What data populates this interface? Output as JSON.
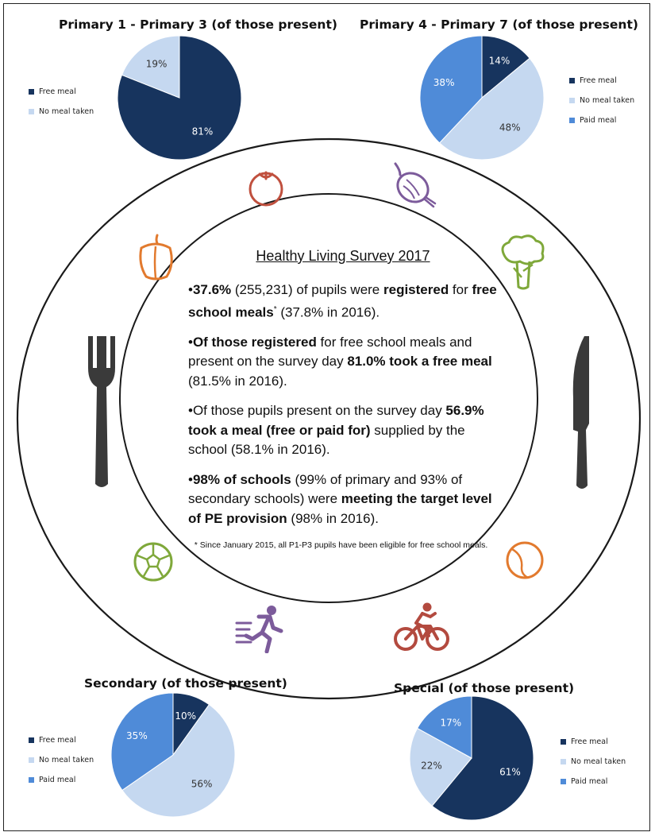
{
  "colors": {
    "free": "#17345e",
    "none": "#c5d8f0",
    "paid": "#4f8bd8",
    "orange": "#e27a2e",
    "green": "#7fa83a",
    "purple": "#7c5b9b",
    "red": "#b34a3f",
    "cutlery": "#3a3a3a"
  },
  "chart_data": [
    {
      "type": "pie",
      "title": "Primary 1 - Primary 3 (of those present)",
      "categories": [
        "Free meal",
        "No meal taken"
      ],
      "values": [
        81,
        19
      ],
      "labels": [
        "81%",
        "19%"
      ]
    },
    {
      "type": "pie",
      "title": "Primary 4 - Primary 7 (of those present)",
      "categories": [
        "Free meal",
        "No meal taken",
        "Paid meal"
      ],
      "values": [
        14,
        48,
        38
      ],
      "labels": [
        "14%",
        "48%",
        "38%"
      ]
    },
    {
      "type": "pie",
      "title": "Secondary (of those present)",
      "categories": [
        "Free meal",
        "No meal taken",
        "Paid meal"
      ],
      "values": [
        10,
        56,
        35
      ],
      "labels": [
        "10%",
        "56%",
        "35%"
      ]
    },
    {
      "type": "pie",
      "title": "Special (of those present)",
      "categories": [
        "Free meal",
        "No meal taken",
        "Paid meal"
      ],
      "values": [
        61,
        22,
        17
      ],
      "labels": [
        "61%",
        "22%",
        "17%"
      ]
    }
  ],
  "infographic": {
    "title": "Healthy Living Survey 2017",
    "bullets": [
      [
        {
          "t": "37.6%",
          "b": true
        },
        {
          "t": " (255,231) of pupils were "
        },
        {
          "t": "registered",
          "b": true
        },
        {
          "t": " for "
        },
        {
          "t": "free school meals",
          "b": true
        },
        {
          "t": "*",
          "sup": true
        },
        {
          "t": " (37.8% in 2016)."
        }
      ],
      [
        {
          "t": "Of those registered",
          "b": true
        },
        {
          "t": " for free school meals and present on the survey day "
        },
        {
          "t": "81.0% took a free meal",
          "b": true
        },
        {
          "t": " (81.5% in 2016)."
        }
      ],
      [
        {
          "t": "Of those pupils present on the survey day "
        },
        {
          "t": "56.9% took a meal (free or paid for)",
          "b": true
        },
        {
          "t": " supplied by the school (58.1% in 2016)."
        }
      ],
      [
        {
          "t": "98% of schools",
          "b": true
        },
        {
          "t": " (99% of primary and 93% of secondary schools) were "
        },
        {
          "t": "meeting the target level of PE provision",
          "b": true
        },
        {
          "t": " (98% in 2016)."
        }
      ]
    ],
    "footnote": "* Since January 2015, all P1-P3 pupils have been eligible for free school meals."
  },
  "icons": [
    "tomato-icon",
    "onion-icon",
    "pepper-icon",
    "broccoli-icon",
    "fork-icon",
    "knife-icon",
    "football-icon",
    "tennis-ball-icon",
    "runner-icon",
    "cyclist-icon"
  ]
}
